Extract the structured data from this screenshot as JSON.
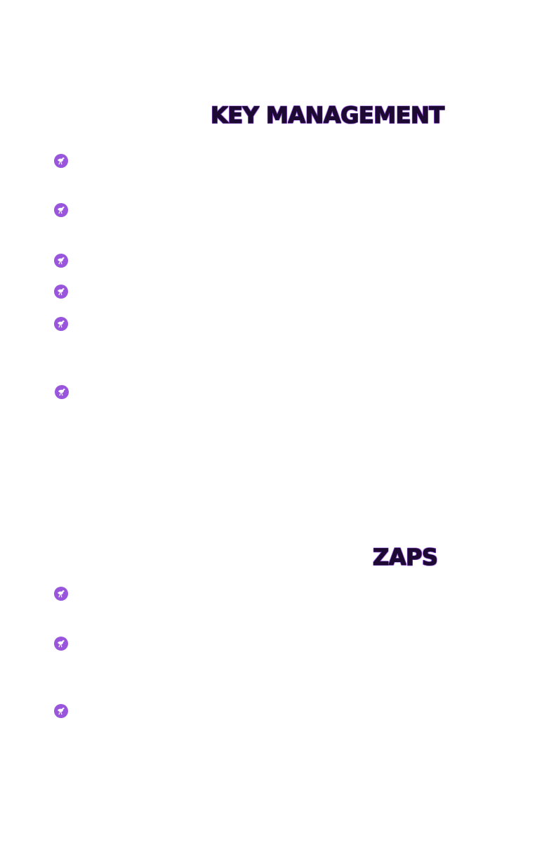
{
  "sections": [
    {
      "title": "KEY MANAGEMENT",
      "bullets": [
        {
          "icon": "ostrich-icon"
        },
        {
          "icon": "ostrich-icon"
        },
        {
          "icon": "ostrich-icon"
        },
        {
          "icon": "ostrich-icon"
        },
        {
          "icon": "ostrich-icon"
        },
        {
          "icon": "ostrich-icon"
        }
      ]
    },
    {
      "title": "ZAPS",
      "bullets": [
        {
          "icon": "ostrich-icon"
        },
        {
          "icon": "ostrich-icon"
        },
        {
          "icon": "ostrich-icon"
        }
      ]
    }
  ],
  "colors": {
    "heading_fill": "#1c0a33",
    "heading_outline": "#9a5ae0",
    "bullet": "#9a55dd"
  }
}
